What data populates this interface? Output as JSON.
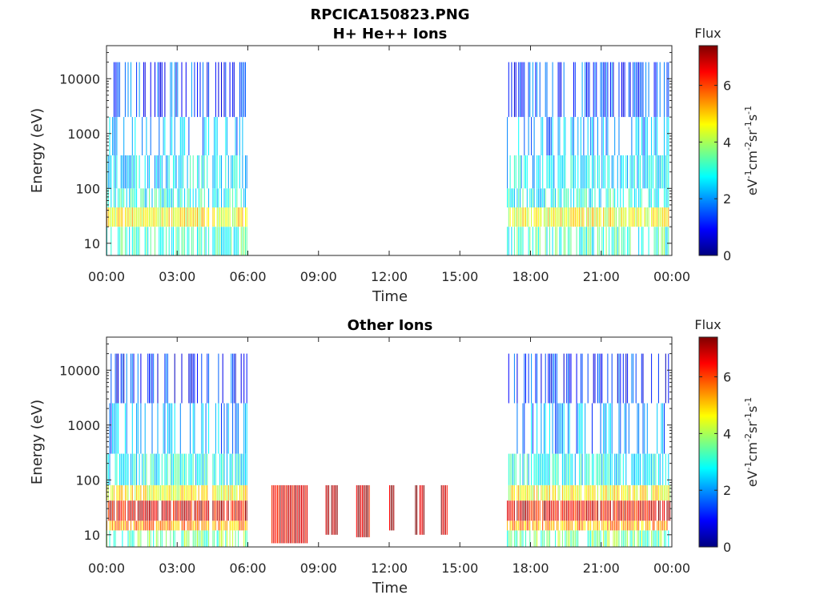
{
  "figure": {
    "title": "RPCICA150823.PNG"
  },
  "colormap": [
    "#00007f",
    "#0000ff",
    "#007fff",
    "#00ffff",
    "#7fff7f",
    "#ffff00",
    "#ff7f00",
    "#ff0000",
    "#7f0000"
  ],
  "chart_data": [
    {
      "type": "heatmap",
      "title": "H+ He++ Ions",
      "xlabel": "Time",
      "ylabel": "Energy (eV)",
      "x_ticks": [
        "00:00",
        "03:00",
        "06:00",
        "09:00",
        "12:00",
        "15:00",
        "18:00",
        "21:00",
        "00:00"
      ],
      "y_ticks": [
        "10",
        "100",
        "1000",
        "10000"
      ],
      "y_scale": "log",
      "ylim": [
        6,
        40000
      ],
      "xlim_hours": [
        0,
        24
      ],
      "colorbar": {
        "title": "Flux",
        "label_html": "eV<sup>-1</sup>cm<sup>-2</sup>sr<sup>-1</sup>s<sup>-1</sup>",
        "ticks": [
          "0",
          "2",
          "4",
          "6"
        ],
        "range": [
          0,
          7.4
        ]
      },
      "data_intervals_hours": [
        [
          0,
          5.95
        ],
        [
          17.0,
          23.95
        ]
      ],
      "data_gaps_hours": [
        [
          4.35,
          4.5
        ]
      ],
      "bands": [
        {
          "e_min": 6,
          "e_max": 20,
          "flux": 3.2
        },
        {
          "e_min": 20,
          "e_max": 45,
          "flux": 4.6
        },
        {
          "e_min": 45,
          "e_max": 100,
          "flux": 2.9
        },
        {
          "e_min": 100,
          "e_max": 400,
          "flux": 2.6
        },
        {
          "e_min": 400,
          "e_max": 2000,
          "flux": 2.1
        },
        {
          "e_min": 2000,
          "e_max": 20000,
          "flux": 1.4
        }
      ]
    },
    {
      "type": "heatmap",
      "title": "Other Ions",
      "xlabel": "Time",
      "ylabel": "Energy (eV)",
      "x_ticks": [
        "00:00",
        "03:00",
        "06:00",
        "09:00",
        "12:00",
        "15:00",
        "18:00",
        "21:00",
        "00:00"
      ],
      "y_ticks": [
        "10",
        "100",
        "1000",
        "10000"
      ],
      "y_scale": "log",
      "ylim": [
        6,
        40000
      ],
      "xlim_hours": [
        0,
        24
      ],
      "colorbar": {
        "title": "Flux",
        "label_html": "eV<sup>-1</sup>cm<sup>-2</sup>sr<sup>-1</sup>s<sup>-1</sup>",
        "ticks": [
          "0",
          "2",
          "4",
          "6"
        ],
        "range": [
          0,
          7.4
        ]
      },
      "data_intervals_hours": [
        [
          0,
          5.95
        ],
        [
          17.0,
          23.95
        ]
      ],
      "data_gaps_hours": [
        [
          4.35,
          4.5
        ]
      ],
      "bands": [
        {
          "e_min": 6,
          "e_max": 12,
          "flux": 3.6
        },
        {
          "e_min": 12,
          "e_max": 18,
          "flux": 5.3
        },
        {
          "e_min": 18,
          "e_max": 42,
          "flux": 6.6
        },
        {
          "e_min": 42,
          "e_max": 80,
          "flux": 4.6
        },
        {
          "e_min": 80,
          "e_max": 300,
          "flux": 2.8
        },
        {
          "e_min": 300,
          "e_max": 2500,
          "flux": 2.0
        },
        {
          "e_min": 2500,
          "e_max": 20000,
          "flux": 1.2
        }
      ],
      "bursts": [
        {
          "t_start": 7.0,
          "t_end": 8.5,
          "e_min": 7,
          "e_max": 80,
          "flux": 6.8
        },
        {
          "t_start": 9.3,
          "t_end": 9.8,
          "e_min": 10,
          "e_max": 80,
          "flux": 7.0
        },
        {
          "t_start": 10.6,
          "t_end": 11.2,
          "e_min": 9,
          "e_max": 80,
          "flux": 6.9
        },
        {
          "t_start": 12.0,
          "t_end": 12.3,
          "e_min": 12,
          "e_max": 80,
          "flux": 7.1
        },
        {
          "t_start": 13.1,
          "t_end": 13.5,
          "e_min": 10,
          "e_max": 80,
          "flux": 7.0
        },
        {
          "t_start": 14.2,
          "t_end": 14.5,
          "e_min": 10,
          "e_max": 80,
          "flux": 7.1
        }
      ]
    }
  ]
}
